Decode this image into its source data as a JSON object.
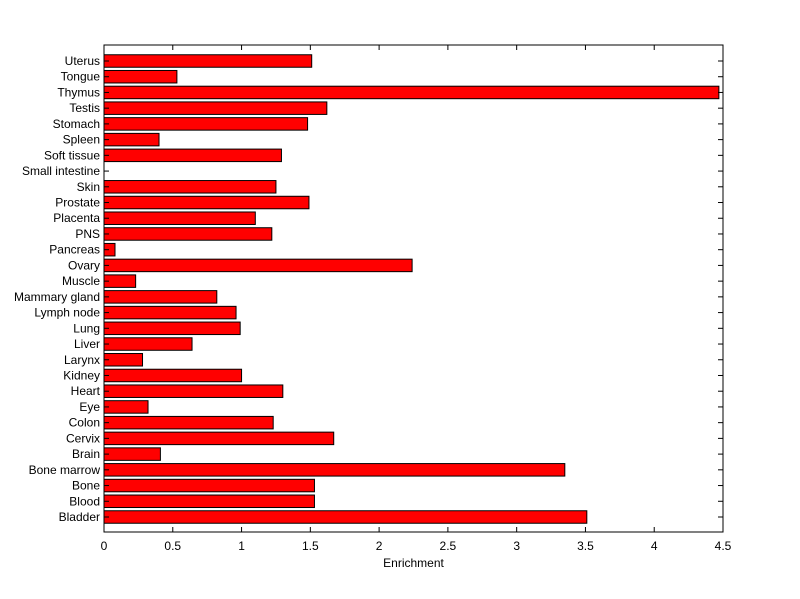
{
  "chart_data": {
    "type": "bar",
    "orientation": "horizontal",
    "title": "",
    "xlabel": "Enrichment",
    "ylabel": "",
    "xlim": [
      0,
      4.5
    ],
    "xticks": [
      "0",
      "0.5",
      "1",
      "1.5",
      "2",
      "2.5",
      "3",
      "3.5",
      "4",
      "4.5"
    ],
    "grid": false,
    "legend": "none",
    "bar_color": "#ff0000",
    "categories": [
      "Uterus",
      "Tongue",
      "Thymus",
      "Testis",
      "Stomach",
      "Spleen",
      "Soft tissue",
      "Small intestine",
      "Skin",
      "Prostate",
      "Placenta",
      "PNS",
      "Pancreas",
      "Ovary",
      "Muscle",
      "Mammary gland",
      "Lymph node",
      "Lung",
      "Liver",
      "Larynx",
      "Kidney",
      "Heart",
      "Eye",
      "Colon",
      "Cervix",
      "Brain",
      "Bone marrow",
      "Bone",
      "Blood",
      "Bladder"
    ],
    "values": [
      1.51,
      0.53,
      4.47,
      1.62,
      1.48,
      0.4,
      1.29,
      0.0,
      1.25,
      1.49,
      1.1,
      1.22,
      0.08,
      2.24,
      0.23,
      0.82,
      0.96,
      0.99,
      0.64,
      0.28,
      1.0,
      1.3,
      0.32,
      1.23,
      1.67,
      0.41,
      3.35,
      1.53,
      1.53,
      3.51
    ]
  }
}
